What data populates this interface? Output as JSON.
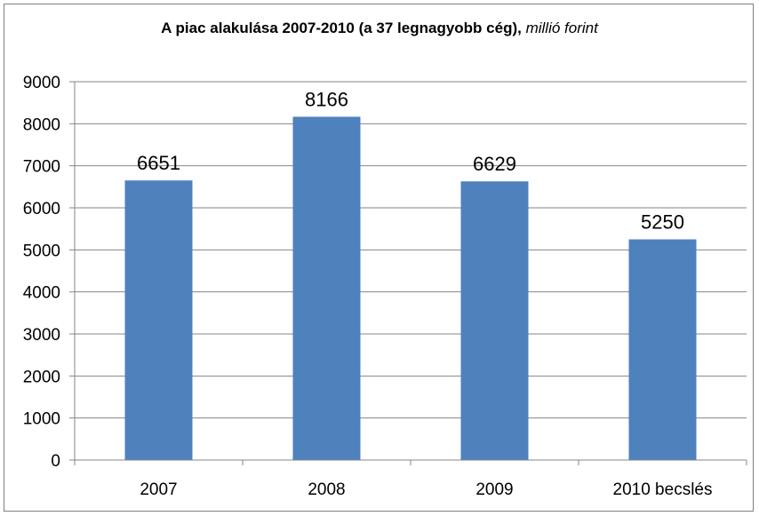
{
  "chart_data": {
    "type": "bar",
    "title": "A piac alakulása 2007-2010 (a 37 legnagyobb cég),",
    "title_unit": "millió forint",
    "categories": [
      "2007",
      "2008",
      "2009",
      "2010 becslés"
    ],
    "values": [
      6651,
      8166,
      6629,
      5250
    ],
    "data_labels": [
      "6651",
      "8166",
      "6629",
      "5250"
    ],
    "xlabel": "",
    "ylabel": "",
    "ylim": [
      0,
      9000
    ],
    "yticks": [
      0,
      1000,
      2000,
      3000,
      4000,
      5000,
      6000,
      7000,
      8000,
      9000
    ],
    "ytick_labels": [
      "0",
      "1000",
      "2000",
      "3000",
      "4000",
      "5000",
      "6000",
      "7000",
      "8000",
      "9000"
    ],
    "grid": true,
    "legend": "none",
    "colors": {
      "bar": "#4f81bd",
      "grid": "#868686",
      "axis": "#868686"
    }
  }
}
